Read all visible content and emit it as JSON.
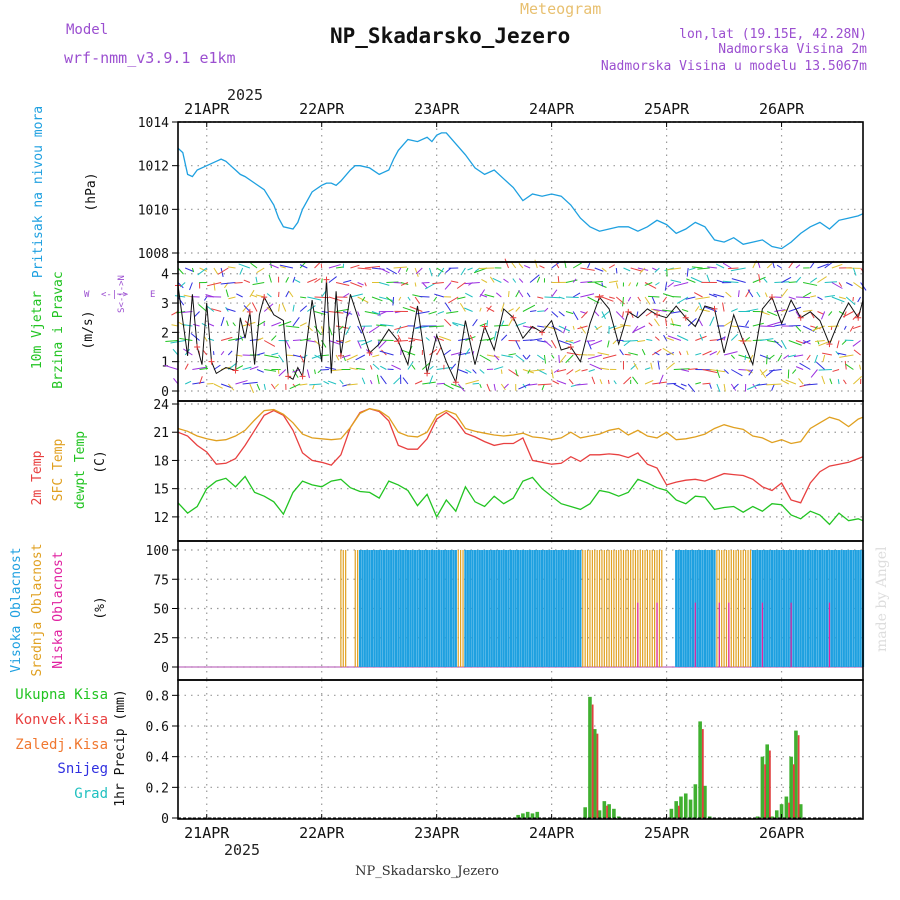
{
  "header": {
    "model_label": "Model",
    "model_name": "wrf-nmm_v3.9.1 e1km",
    "center_top": "Meteogram",
    "station": "NP_Skadarsko_Jezero",
    "lonlat": "lon,lat (19.15E, 42.28N)",
    "elev1": "Nadmorska Visina 2m",
    "elev2": "Nadmorska Visina u modelu 13.5067m",
    "footer_station": "NP_Skadarsko_Jezero",
    "credit": "made by Angel"
  },
  "colors": {
    "pressure": "#1ea0e0",
    "temp2m": "#e84040",
    "sfctemp": "#e0a020",
    "dewpt": "#22c422",
    "cloud_high": "#1ea0e0",
    "cloud_mid": "#e0a020",
    "cloud_low": "#e020a0",
    "rain_total": "#40b030",
    "rain_conv": "#e04040",
    "snow": "#3030e0",
    "hail": "#20c0c0",
    "grid": "#999999"
  },
  "time_axis": {
    "year": "2025",
    "day_labels": [
      "21APR",
      "22APR",
      "23APR",
      "24APR",
      "25APR",
      "26APR"
    ],
    "day_positions_hours": [
      6,
      30,
      54,
      78,
      102,
      126
    ],
    "range_hours": [
      0,
      143
    ]
  },
  "chart_data": [
    {
      "type": "line",
      "title": "Pritisak na nivou mora",
      "ylabel": "(hPa)",
      "ylim": [
        1008,
        1014
      ],
      "yticks": [
        "1008",
        "1010",
        "1012",
        "1014"
      ],
      "series": [
        {
          "name": "Pritisak na nivou mora",
          "x": [
            0,
            1,
            2,
            3,
            4,
            6,
            8,
            9,
            10,
            11,
            12,
            13,
            14,
            16,
            18,
            20,
            21,
            22,
            24,
            25,
            26,
            28,
            30,
            31,
            32,
            33,
            34,
            36,
            37,
            38,
            40,
            42,
            44,
            45,
            46,
            48,
            50,
            52,
            53,
            54,
            55,
            56,
            58,
            60,
            62,
            64,
            66,
            68,
            70,
            72,
            74,
            76,
            78,
            80,
            82,
            84,
            86,
            88,
            90,
            92,
            94,
            96,
            98,
            100,
            102,
            104,
            106,
            108,
            110,
            112,
            114,
            116,
            118,
            120,
            122,
            124,
            126,
            128,
            130,
            132,
            134,
            136,
            138,
            140,
            142,
            143
          ],
          "values": [
            1012.8,
            1012.6,
            1011.6,
            1011.5,
            1011.8,
            1012.0,
            1012.2,
            1012.3,
            1012.2,
            1012.0,
            1011.8,
            1011.6,
            1011.5,
            1011.2,
            1010.9,
            1010.2,
            1009.6,
            1009.2,
            1009.1,
            1009.4,
            1010.0,
            1010.8,
            1011.1,
            1011.2,
            1011.2,
            1011.1,
            1011.3,
            1011.8,
            1012.0,
            1012.0,
            1011.9,
            1011.6,
            1011.8,
            1012.3,
            1012.7,
            1013.2,
            1013.1,
            1013.3,
            1013.1,
            1013.4,
            1013.5,
            1013.5,
            1013.0,
            1012.5,
            1011.9,
            1011.6,
            1011.8,
            1011.4,
            1011.0,
            1010.4,
            1010.7,
            1010.6,
            1010.7,
            1010.6,
            1010.2,
            1009.6,
            1009.2,
            1009.0,
            1009.1,
            1009.2,
            1009.2,
            1009.0,
            1009.2,
            1009.5,
            1009.3,
            1008.9,
            1009.1,
            1009.4,
            1009.2,
            1008.6,
            1008.5,
            1008.7,
            1008.4,
            1008.5,
            1008.6,
            1008.3,
            1008.2,
            1008.5,
            1008.9,
            1009.2,
            1009.4,
            1009.1,
            1009.5,
            1009.6,
            1009.7,
            1009.8
          ]
        }
      ]
    },
    {
      "type": "line",
      "title": "10m Vjetar Brzina i Pravac",
      "ylabel": "(m/s)",
      "ylim": [
        0,
        4.4
      ],
      "yticks": [
        "0",
        "1",
        "2",
        "3",
        "4"
      ],
      "compass": [
        "N",
        "E",
        "S",
        "W"
      ],
      "compass_arrow": "<-|->",
      "series": [
        {
          "name": "10m Vjetar Brzina",
          "x": [
            0,
            2,
            3,
            4,
            5,
            6,
            7,
            8,
            10,
            12,
            13,
            14,
            15,
            16,
            17,
            18,
            20,
            22,
            23,
            24,
            25,
            26,
            28,
            30,
            31,
            32,
            33,
            34,
            36,
            38,
            40,
            42,
            44,
            46,
            48,
            50,
            52,
            54,
            56,
            58,
            60,
            62,
            64,
            66,
            68,
            70,
            72,
            74,
            76,
            78,
            80,
            82,
            84,
            86,
            88,
            90,
            92,
            94,
            96,
            98,
            100,
            102,
            104,
            106,
            108,
            110,
            112,
            114,
            116,
            118,
            120,
            122,
            124,
            126,
            128,
            130,
            132,
            134,
            136,
            138,
            140,
            142,
            143
          ],
          "values": [
            3.6,
            1.2,
            3.3,
            1.5,
            0.9,
            3.0,
            1.0,
            0.6,
            0.8,
            0.7,
            2.5,
            1.8,
            2.7,
            0.9,
            2.6,
            3.2,
            2.6,
            2.4,
            0.5,
            0.4,
            0.8,
            0.5,
            3.1,
            1.0,
            3.8,
            0.6,
            3.4,
            1.2,
            3.3,
            2.3,
            1.3,
            1.6,
            2.1,
            1.7,
            0.9,
            2.9,
            0.6,
            1.9,
            1.0,
            0.3,
            2.4,
            0.9,
            2.2,
            1.4,
            2.8,
            2.5,
            1.8,
            2.2,
            2.0,
            2.4,
            1.4,
            1.5,
            1.0,
            2.3,
            3.2,
            2.8,
            1.6,
            2.7,
            2.5,
            2.8,
            2.6,
            2.5,
            2.9,
            2.5,
            2.2,
            2.9,
            2.8,
            1.3,
            2.6,
            1.7,
            0.9,
            2.8,
            3.2,
            2.3,
            3.1,
            2.5,
            2.7,
            2.4,
            1.6,
            2.4,
            3.0,
            2.5,
            3.1
          ]
        }
      ]
    },
    {
      "type": "line",
      "title": "2m Temp / SFC Temp / dewpt Temp",
      "ylabel": "(C)",
      "ylim": [
        10.5,
        24
      ],
      "yticks": [
        "12",
        "15",
        "18",
        "21",
        "24"
      ],
      "x": [
        0,
        2,
        4,
        6,
        8,
        10,
        12,
        14,
        16,
        18,
        20,
        22,
        24,
        26,
        28,
        30,
        32,
        34,
        36,
        38,
        40,
        42,
        44,
        46,
        48,
        50,
        52,
        54,
        56,
        58,
        60,
        62,
        64,
        66,
        68,
        70,
        72,
        74,
        76,
        78,
        80,
        82,
        84,
        86,
        88,
        90,
        92,
        94,
        96,
        98,
        100,
        102,
        104,
        106,
        108,
        110,
        112,
        114,
        116,
        118,
        120,
        122,
        124,
        126,
        128,
        130,
        132,
        134,
        136,
        138,
        140,
        142,
        143
      ],
      "series": [
        {
          "name": "2m Temp",
          "values": [
            21.0,
            20.6,
            19.6,
            18.9,
            17.6,
            17.7,
            18.2,
            19.6,
            21.2,
            22.8,
            23.3,
            22.8,
            21.2,
            18.8,
            18.0,
            17.8,
            17.5,
            18.6,
            21.5,
            23.1,
            23.5,
            23.2,
            22.2,
            19.6,
            19.2,
            19.2,
            20.3,
            22.4,
            23.1,
            22.3,
            20.9,
            20.5,
            20.0,
            19.6,
            19.8,
            19.8,
            20.4,
            18.0,
            17.8,
            17.6,
            17.7,
            18.4,
            17.9,
            18.6,
            18.6,
            18.7,
            18.6,
            18.3,
            18.8,
            17.6,
            17.2,
            15.4,
            15.7,
            15.9,
            16.0,
            15.8,
            16.2,
            16.6,
            16.5,
            16.4,
            16.0,
            15.2,
            14.8,
            15.6,
            13.8,
            13.5,
            15.6,
            16.8,
            17.4,
            17.6,
            17.8,
            18.2,
            18.4
          ]
        },
        {
          "name": "SFC Temp",
          "values": [
            21.4,
            21.1,
            20.6,
            20.3,
            20.1,
            20.2,
            20.6,
            21.2,
            22.3,
            23.3,
            23.4,
            22.9,
            22.0,
            20.8,
            20.4,
            20.3,
            20.2,
            20.3,
            21.5,
            23.0,
            23.5,
            23.3,
            22.6,
            21.0,
            20.6,
            20.5,
            21.0,
            22.8,
            23.3,
            22.9,
            21.4,
            21.1,
            20.9,
            20.7,
            20.6,
            20.7,
            20.9,
            20.5,
            20.4,
            20.2,
            20.4,
            21.0,
            20.4,
            20.6,
            20.8,
            21.2,
            21.4,
            20.7,
            21.2,
            20.6,
            20.4,
            21.0,
            20.2,
            20.3,
            20.5,
            20.8,
            21.4,
            21.8,
            21.5,
            21.3,
            20.6,
            20.4,
            19.9,
            20.2,
            19.8,
            20.0,
            21.4,
            22.0,
            22.6,
            22.3,
            21.6,
            22.4,
            22.6
          ]
        },
        {
          "name": "dewpt Temp",
          "values": [
            13.5,
            12.4,
            13.1,
            15.0,
            15.8,
            16.1,
            15.2,
            16.3,
            14.6,
            14.2,
            13.6,
            12.3,
            14.6,
            15.8,
            15.4,
            15.2,
            15.8,
            16.0,
            15.1,
            14.7,
            14.6,
            14.0,
            15.8,
            15.4,
            14.8,
            13.2,
            14.4,
            12.0,
            13.8,
            12.6,
            15.2,
            13.6,
            13.1,
            14.2,
            13.4,
            14.0,
            15.8,
            16.2,
            15.0,
            14.2,
            13.4,
            13.1,
            12.8,
            13.4,
            14.8,
            14.6,
            14.2,
            14.6,
            16.0,
            15.6,
            15.1,
            14.8,
            13.8,
            13.4,
            14.2,
            14.1,
            12.8,
            13.0,
            13.1,
            12.5,
            13.1,
            12.6,
            13.4,
            13.3,
            12.2,
            11.8,
            12.6,
            12.2,
            11.2,
            12.4,
            11.6,
            11.8,
            11.6
          ]
        }
      ]
    },
    {
      "type": "bar",
      "title": "Visoka Oblacnost / Srednja Oblacnost / Niska Oblacnost",
      "ylabel": "(%)",
      "ylim": [
        0,
        100
      ],
      "yticks": [
        "0",
        "25",
        "50",
        "75",
        "100"
      ],
      "series": [
        {
          "name": "Visoka Oblacnost",
          "ranges_hours": [
            [
              38,
              48
            ],
            [
              48,
              58
            ],
            [
              60,
              84
            ],
            [
              104,
              112
            ],
            [
              120,
              143
            ]
          ],
          "value": 100
        },
        {
          "name": "Srednja Oblacnost",
          "ranges_hours": [
            [
              34,
              35
            ],
            [
              37,
              40
            ],
            [
              58,
              62
            ],
            [
              84,
              101
            ],
            [
              110,
              140
            ]
          ],
          "value": 100
        },
        {
          "name": "Niska Oblacnost",
          "ranges_hours": [
            [
              96,
              96
            ],
            [
              100,
              100
            ],
            [
              108,
              108
            ],
            [
              113,
              113
            ],
            [
              115,
              115
            ],
            [
              122,
              122
            ],
            [
              128,
              128
            ],
            [
              136,
              136
            ]
          ],
          "value": 55
        }
      ]
    },
    {
      "type": "bar",
      "title": "1hr Precip",
      "ylabel": "1hr Precip (mm)",
      "ylim": [
        0,
        0.9
      ],
      "yticks": [
        "0",
        "0.2",
        "0.4",
        "0.6",
        "0.8"
      ],
      "legend": [
        "Ukupna Kisa",
        "Konvek.Kisa",
        "Zaledj.Kisa",
        "Snijeg",
        "Grad"
      ],
      "series": [
        {
          "name": "Ukupna Kisa",
          "x": [
            71,
            72,
            73,
            74,
            75,
            85,
            86,
            87,
            88,
            89,
            90,
            91,
            92,
            103,
            104,
            105,
            106,
            107,
            108,
            109,
            110,
            111,
            121,
            122,
            123,
            124,
            125,
            126,
            127,
            128,
            129,
            130
          ],
          "values": [
            0.02,
            0.03,
            0.04,
            0.03,
            0.04,
            0.07,
            0.79,
            0.58,
            0.05,
            0.11,
            0.09,
            0.06,
            0.01,
            0.06,
            0.11,
            0.14,
            0.16,
            0.12,
            0.22,
            0.63,
            0.21,
            0.01,
            0.01,
            0.4,
            0.48,
            0.01,
            0.05,
            0.09,
            0.14,
            0.4,
            0.57,
            0.09
          ]
        },
        {
          "name": "Konvek.Kisa",
          "x": [
            86,
            87,
            89,
            104,
            109,
            122,
            123,
            127,
            128,
            129
          ],
          "values": [
            0.74,
            0.55,
            0.08,
            0.08,
            0.58,
            0.35,
            0.44,
            0.1,
            0.35,
            0.54
          ]
        }
      ]
    }
  ]
}
